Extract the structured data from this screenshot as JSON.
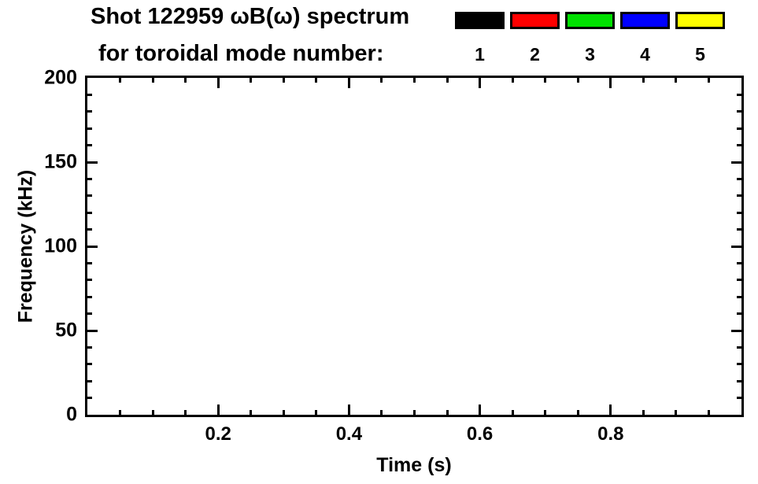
{
  "header": {
    "title_line1": "Shot 122959 ωB(ω) spectrum",
    "title_line2": "for toroidal mode number:"
  },
  "legend": {
    "items": [
      {
        "label": "1",
        "color": "#000000"
      },
      {
        "label": "2",
        "color": "#ff0000"
      },
      {
        "label": "3",
        "color": "#00e000"
      },
      {
        "label": "4",
        "color": "#0000ff"
      },
      {
        "label": "5",
        "color": "#ffff00"
      }
    ]
  },
  "chart_data": {
    "type": "heatmap",
    "title": "Shot 122959 ωB(ω) spectrum",
    "subtitle": "for toroidal mode number:",
    "xlabel": "Time (s)",
    "ylabel": "Frequency (kHz)",
    "xlim": [
      0,
      1.0
    ],
    "ylim": [
      0,
      200
    ],
    "x_major_ticks": [
      0.2,
      0.4,
      0.6,
      0.8
    ],
    "x_tick_labels": [
      "0.2",
      "0.4",
      "0.6",
      "0.8"
    ],
    "x_minor_step": 0.05,
    "y_major_ticks": [
      0,
      50,
      100,
      150,
      200
    ],
    "y_tick_labels": [
      "0",
      "50",
      "100",
      "150",
      "200"
    ],
    "y_minor_step": 10,
    "grid": false,
    "legend_position": "top-right",
    "plot_background": "#ffffff",
    "series": [
      {
        "name": "1",
        "color": "#000000",
        "points": []
      },
      {
        "name": "2",
        "color": "#ff0000",
        "points": []
      },
      {
        "name": "3",
        "color": "#00e000",
        "points": []
      },
      {
        "name": "4",
        "color": "#0000ff",
        "points": []
      },
      {
        "name": "5",
        "color": "#ffff00",
        "points": []
      }
    ]
  }
}
